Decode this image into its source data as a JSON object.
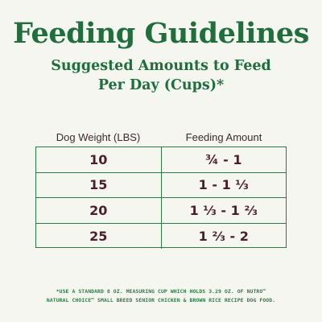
{
  "title": "Feeding Guidelines",
  "subtitle": {
    "line1": "Suggested Amounts to Feed",
    "line2": "Per Day (Cups)*"
  },
  "table": {
    "headers": [
      "Dog Weight (LBS)",
      "Feeding Amount"
    ],
    "rows": [
      {
        "weight": "10",
        "amount": "¾ - 1"
      },
      {
        "weight": "15",
        "amount": "1 - 1 ⅓"
      },
      {
        "weight": "20",
        "amount": "1 ⅓ - 1 ⅔"
      },
      {
        "weight": "25",
        "amount": "1 ⅔ - 2"
      }
    ]
  },
  "footnote": {
    "line1": "*USE A STANDARD 8 OZ. MEASURING CUP WHICH HOLDS 3.29 OZ. OF NUTRO™",
    "line2": "NATURAL CHOICE™ SMALL BREED SENIOR CHICKEN & BROWN RICE RECIPE DOG FOOD."
  },
  "colors": {
    "heading_green": "#1f6e3c",
    "table_border_green": "#2c7a45",
    "value_maroon": "#4a1f2c",
    "background": "#f6f6f1"
  }
}
